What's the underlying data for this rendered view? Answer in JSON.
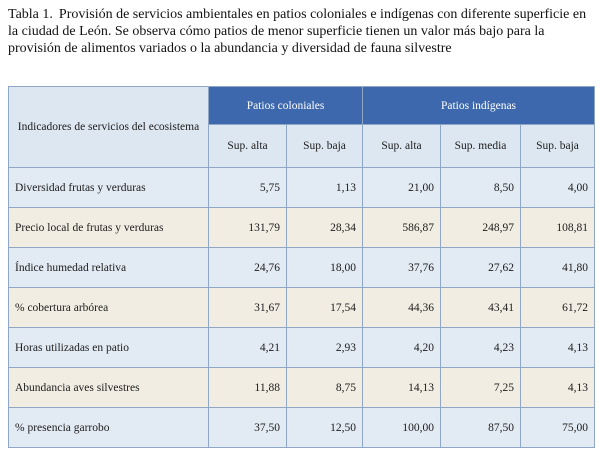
{
  "caption": {
    "label": "Tabla 1.",
    "text": "Provisión de servicios ambientales en patios coloniales e indígenas con diferente superficie en la ciudad de León. Se observa cómo patios de menor superficie tienen un valor más bajo para la provisión de alimentos variados o la abundancia y diversidad de fauna silvestre"
  },
  "table": {
    "indicator_header": "Indicadores de servicios del ecosistema",
    "groups": {
      "coloniales": "Patios coloniales",
      "indigenas": "Patios indígenas"
    },
    "subheaders": [
      "Sup. alta",
      "Sup. baja",
      "Sup. alta",
      "Sup. media",
      "Sup. baja"
    ],
    "rows": [
      {
        "label": "Diversidad frutas y verduras",
        "values": [
          "5,75",
          "1,13",
          "21,00",
          "8,50",
          "4,00"
        ]
      },
      {
        "label": "Precio local de frutas y verduras",
        "values": [
          "131,79",
          "28,34",
          "586,87",
          "248,97",
          "108,81"
        ]
      },
      {
        "label": "Índice humedad relativa",
        "values": [
          "24,76",
          "18,00",
          "37,76",
          "27,62",
          "41,80"
        ]
      },
      {
        "label": "% cobertura arbórea",
        "values": [
          "31,67",
          "17,54",
          "44,36",
          "43,41",
          "61,72"
        ]
      },
      {
        "label": "Horas utilizadas en patio",
        "values": [
          "4,21",
          "2,93",
          "4,20",
          "4,23",
          "4,13"
        ]
      },
      {
        "label": "Abundancia aves silvestres",
        "values": [
          "11,88",
          "8,75",
          "14,13",
          "7,25",
          "4,13"
        ]
      },
      {
        "label": "% presencia garrobo",
        "values": [
          "37,50",
          "12,50",
          "100,00",
          "87,50",
          "75,00"
        ]
      }
    ]
  }
}
